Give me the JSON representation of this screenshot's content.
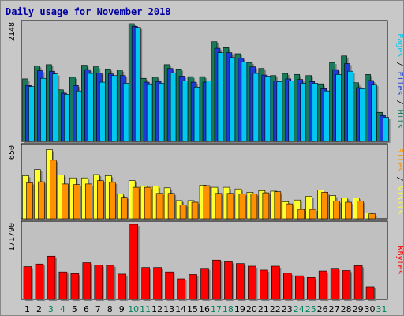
{
  "chart_data": {
    "type": "bar",
    "title": "Daily usage for November 2018",
    "days": [
      "1",
      "2",
      "3",
      "4",
      "5",
      "6",
      "7",
      "8",
      "9",
      "10",
      "11",
      "12",
      "13",
      "14",
      "15",
      "16",
      "17",
      "18",
      "19",
      "20",
      "21",
      "22",
      "23",
      "24",
      "25",
      "26",
      "27",
      "28",
      "29",
      "30",
      "31"
    ],
    "weekend_days": [
      "3",
      "4",
      "10",
      "11",
      "17",
      "18",
      "24",
      "25",
      "31"
    ],
    "colors": {
      "hits": "#1a7a5a",
      "files": "#1c3cd8",
      "pages": "#00c8f0",
      "visits": "#ffff30",
      "sites": "#ff9000",
      "kbytes": "#ff0000",
      "title": "#0000a0",
      "weekend": "#00805c"
    },
    "panels": [
      {
        "id": "hits-files-pages",
        "max_label": "2148",
        "ymax": 2148,
        "legend": [
          {
            "text": "Pages",
            "color": "#00c8f0"
          },
          {
            "text": " / ",
            "color": "#000000"
          },
          {
            "text": "Files",
            "color": "#1c3cd8"
          },
          {
            "text": " / ",
            "color": "#000000"
          },
          {
            "text": "Hits",
            "color": "#1a7a5a"
          }
        ],
        "series": [
          {
            "name": "Hits",
            "values": [
              1140,
              1380,
              1400,
              940,
              1170,
              1390,
              1360,
              1320,
              1300,
              2148,
              1150,
              1170,
              1400,
              1320,
              1180,
              1180,
              1820,
              1710,
              1600,
              1440,
              1330,
              1200,
              1240,
              1220,
              1200,
              1050,
              1440,
              1560,
              1070,
              1220,
              530
            ]
          },
          {
            "name": "Files",
            "values": [
              1020,
              1290,
              1280,
              880,
              1020,
              1310,
              1250,
              1230,
              1200,
              2100,
              1080,
              1090,
              1330,
              1190,
              1080,
              1080,
              1700,
              1620,
              1520,
              1360,
              1210,
              1100,
              1140,
              1130,
              1090,
              960,
              1310,
              1420,
              980,
              1110,
              470
            ]
          },
          {
            "name": "Pages",
            "values": [
              1000,
              1150,
              1230,
              860,
              920,
              1240,
              1080,
              1200,
              1060,
              2080,
              1050,
              1060,
              1250,
              1100,
              990,
              1100,
              1620,
              1530,
              1450,
              1240,
              1190,
              1090,
              1100,
              1060,
              1060,
              920,
              1220,
              1280,
              960,
              1040,
              440
            ]
          }
        ]
      },
      {
        "id": "visits-sites",
        "max_label": "650",
        "ymax": 650,
        "legend": [
          {
            "text": "Sites",
            "color": "#ff9000"
          },
          {
            "text": " / ",
            "color": "#000000"
          },
          {
            "text": "Visits",
            "color": "#ffff30"
          }
        ],
        "series": [
          {
            "name": "Visits",
            "values": [
              390,
              445,
              625,
              395,
              370,
              370,
              400,
              390,
              225,
              345,
              295,
              295,
              280,
              165,
              165,
              305,
              285,
              285,
              270,
              240,
              255,
              250,
              155,
              170,
              205,
              260,
              210,
              190,
              190,
              55,
              0
            ]
          },
          {
            "name": "Sites",
            "values": [
              325,
              335,
              530,
              315,
              310,
              315,
              345,
              330,
              195,
              285,
              285,
              230,
              230,
              125,
              150,
              300,
              230,
              230,
              225,
              225,
              235,
              245,
              135,
              85,
              85,
              240,
              160,
              150,
              160,
              45,
              0
            ]
          }
        ]
      },
      {
        "id": "kbytes",
        "max_label": "171790",
        "ymax": 171790,
        "legend": [
          {
            "text": "KBytes",
            "color": "#ff0000"
          }
        ],
        "series": [
          {
            "name": "KBytes",
            "values": [
              75000,
              81000,
              99000,
              63000,
              59000,
              84000,
              79000,
              78000,
              58000,
              171790,
              73000,
              73000,
              63000,
              47000,
              57000,
              71000,
              90000,
              86000,
              82000,
              76000,
              67000,
              76000,
              60000,
              54000,
              50000,
              65000,
              71000,
              66000,
              77000,
              29000,
              0
            ]
          }
        ]
      }
    ]
  }
}
